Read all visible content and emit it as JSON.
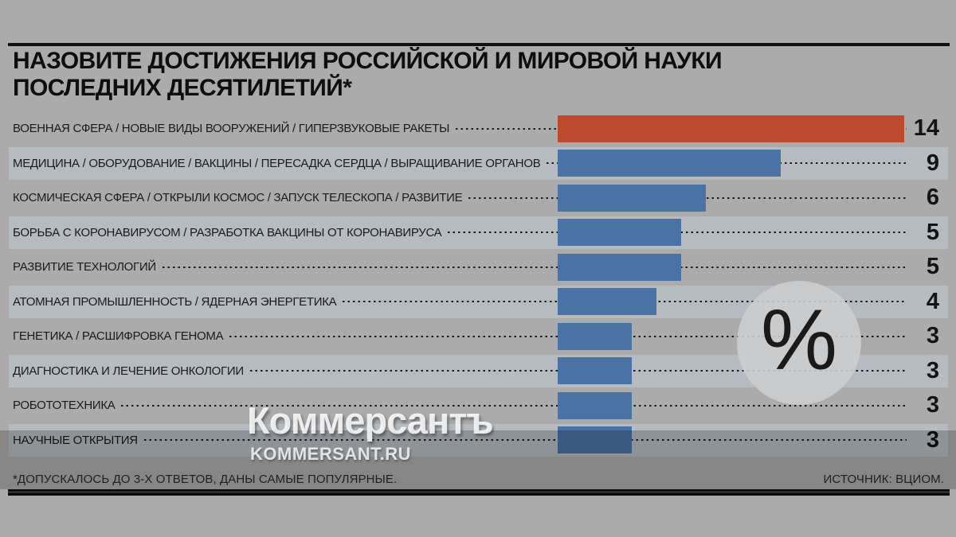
{
  "title": {
    "line1": "НАЗОВИТЕ ДОСТИЖЕНИЯ РОССИЙСКОЙ И МИРОВОЙ НАУКИ",
    "line2": "ПОСЛЕДНИХ ДЕСЯТИЛЕТИЙ*"
  },
  "unit_badge": "%",
  "footnote": "*ДОПУСКАЛОСЬ ДО 3-Х ОТВЕТОВ, ДАНЫ САМЫЕ ПОПУЛЯРНЫЕ.",
  "source": "ИСТОЧНИК: ВЦИОМ.",
  "watermark": {
    "brand": "Коммерсантъ",
    "site": "KOMMERSANT.RU"
  },
  "colors": {
    "background": "#ababab",
    "row_band": "#b5bbc1",
    "bar_highlight": "#bb4a2e",
    "bar_normal": "#4a72a4",
    "circle": "rgba(203,205,206,0.9)",
    "rule": "#101010"
  },
  "chart_data": {
    "type": "bar",
    "orientation": "horizontal",
    "title": "НАЗОВИТЕ ДОСТИЖЕНИЯ РОССИЙСКОЙ И МИРОВОЙ НАУКИ ПОСЛЕДНИХ ДЕСЯТИЛЕТИЙ*",
    "unit": "%",
    "xlim": [
      0,
      14
    ],
    "highlight_index": 0,
    "categories": [
      "ВОЕННАЯ СФЕРА / НОВЫЕ ВИДЫ ВООРУЖЕНИЙ / ГИПЕРЗВУКОВЫЕ РАКЕТЫ",
      "МЕДИЦИНА / ОБОРУДОВАНИЕ / ВАКЦИНЫ / ПЕРЕСАДКА СЕРДЦА / ВЫРАЩИВАНИЕ ОРГАНОВ",
      "КОСМИЧЕСКАЯ СФЕРА / ОТКРЫЛИ КОСМОС / ЗАПУСК ТЕЛЕСКОПА / РАЗВИТИЕ",
      "БОРЬБА С КОРОНАВИРУСОМ / РАЗРАБОТКА ВАКЦИНЫ ОТ КОРОНАВИРУСА",
      "РАЗВИТИЕ ТЕХНОЛОГИЙ",
      "АТОМНАЯ ПРОМЫШЛЕННОСТЬ / ЯДЕРНАЯ ЭНЕРГЕТИКА",
      "ГЕНЕТИКА / РАСШИФРОВКА ГЕНОМА",
      "ДИАГНОСТИКА И ЛЕЧЕНИЕ ОНКОЛОГИИ",
      "РОБОТОТЕХНИКА",
      "НАУЧНЫЕ ОТКРЫТИЯ"
    ],
    "values": [
      14,
      9,
      6,
      5,
      5,
      4,
      3,
      3,
      3,
      3
    ],
    "source": "ВЦИОМ"
  }
}
